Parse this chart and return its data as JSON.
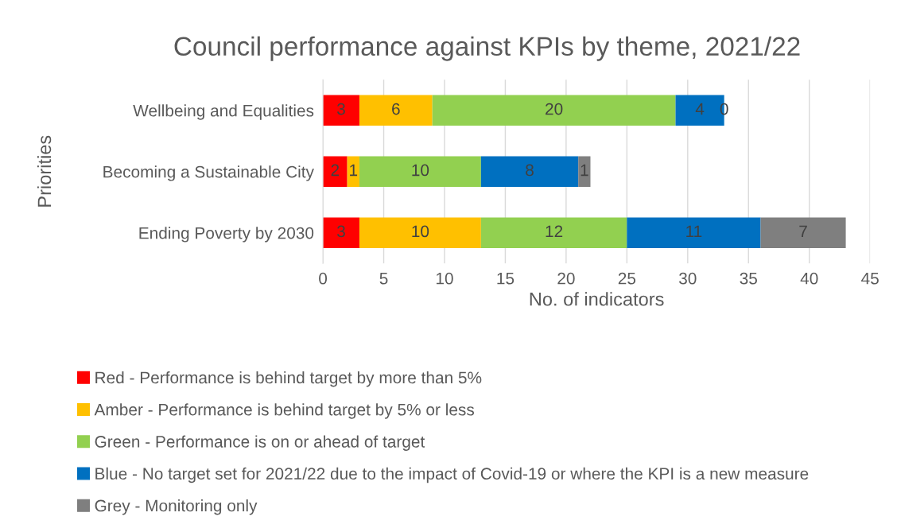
{
  "chart_data": {
    "type": "bar",
    "orientation": "horizontal",
    "stacked": true,
    "title": "Council performance against KPIs by theme, 2021/22",
    "xlabel": "No. of indicators",
    "ylabel": "Priorities",
    "categories": [
      "Wellbeing and Equalities",
      "Becoming a Sustainable City",
      "Ending Poverty by 2030"
    ],
    "series": [
      {
        "name": "Red - Performance is behind target by more than 5%",
        "color": "#ff0000",
        "values": [
          3,
          2,
          3
        ]
      },
      {
        "name": "Amber - Performance is behind target by 5% or less",
        "color": "#ffc000",
        "values": [
          6,
          1,
          10
        ]
      },
      {
        "name": "Green - Performance is on or ahead of target",
        "color": "#92d050",
        "values": [
          20,
          10,
          12
        ]
      },
      {
        "name": "Blue - No target set for 2021/22 due to the impact of Covid-19 or where the KPI is a new measure",
        "color": "#0070c0",
        "values": [
          4,
          8,
          11
        ]
      },
      {
        "name": "Grey - Monitoring only",
        "color": "#7f7f7f",
        "values": [
          0,
          1,
          7
        ]
      }
    ],
    "xlim": [
      0,
      45
    ],
    "xticks": [
      0,
      5,
      10,
      15,
      20,
      25,
      30,
      35,
      40,
      45
    ],
    "grid": "x",
    "legend": "bottom",
    "data_labels": true
  }
}
